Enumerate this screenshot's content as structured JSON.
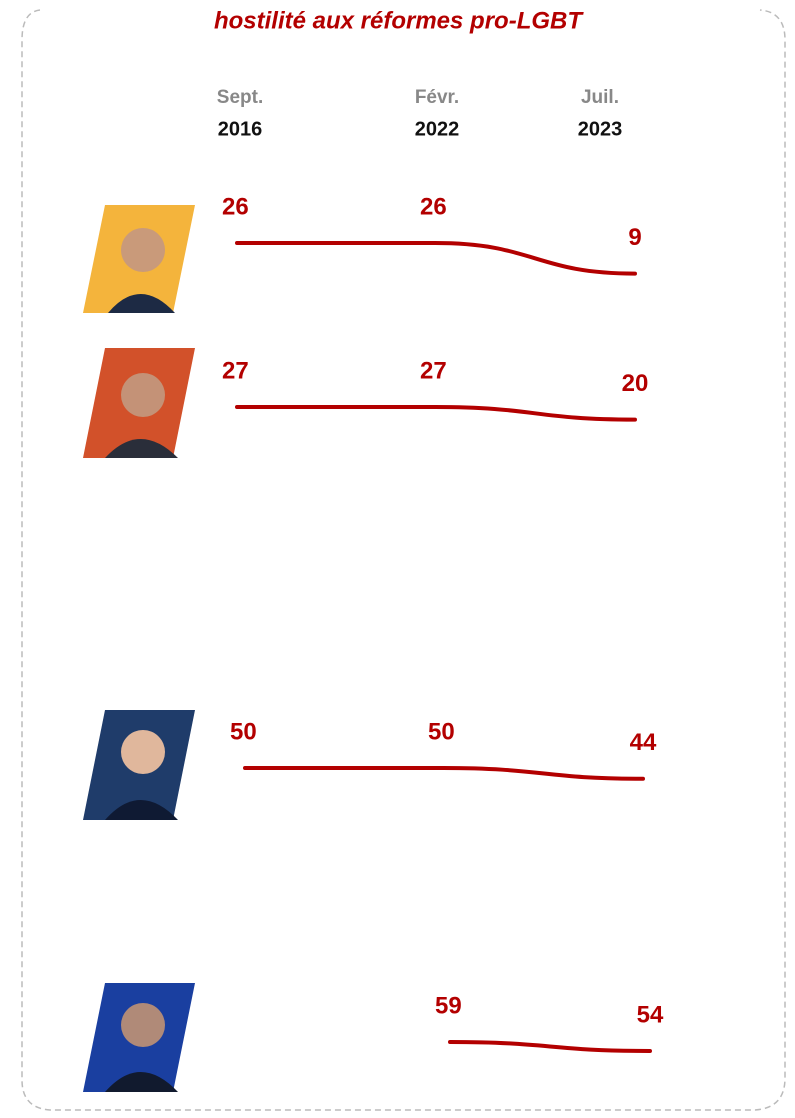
{
  "chart_data": {
    "type": "slope",
    "title": "hostilité aux réformes pro-LGBT",
    "x": [
      {
        "month": "Sept.",
        "year": "2016"
      },
      {
        "month": "Févr.",
        "year": "2022"
      },
      {
        "month": "Juil.",
        "year": "2023"
      }
    ],
    "series": [
      {
        "color": "#b30000",
        "values": [
          26,
          26,
          9
        ]
      },
      {
        "color": "#b30000",
        "values": [
          27,
          27,
          20
        ]
      },
      {
        "color": "#b30000",
        "values": [
          50,
          50,
          44
        ]
      },
      {
        "color": "#b30000",
        "values": [
          null,
          59,
          54
        ]
      }
    ]
  }
}
